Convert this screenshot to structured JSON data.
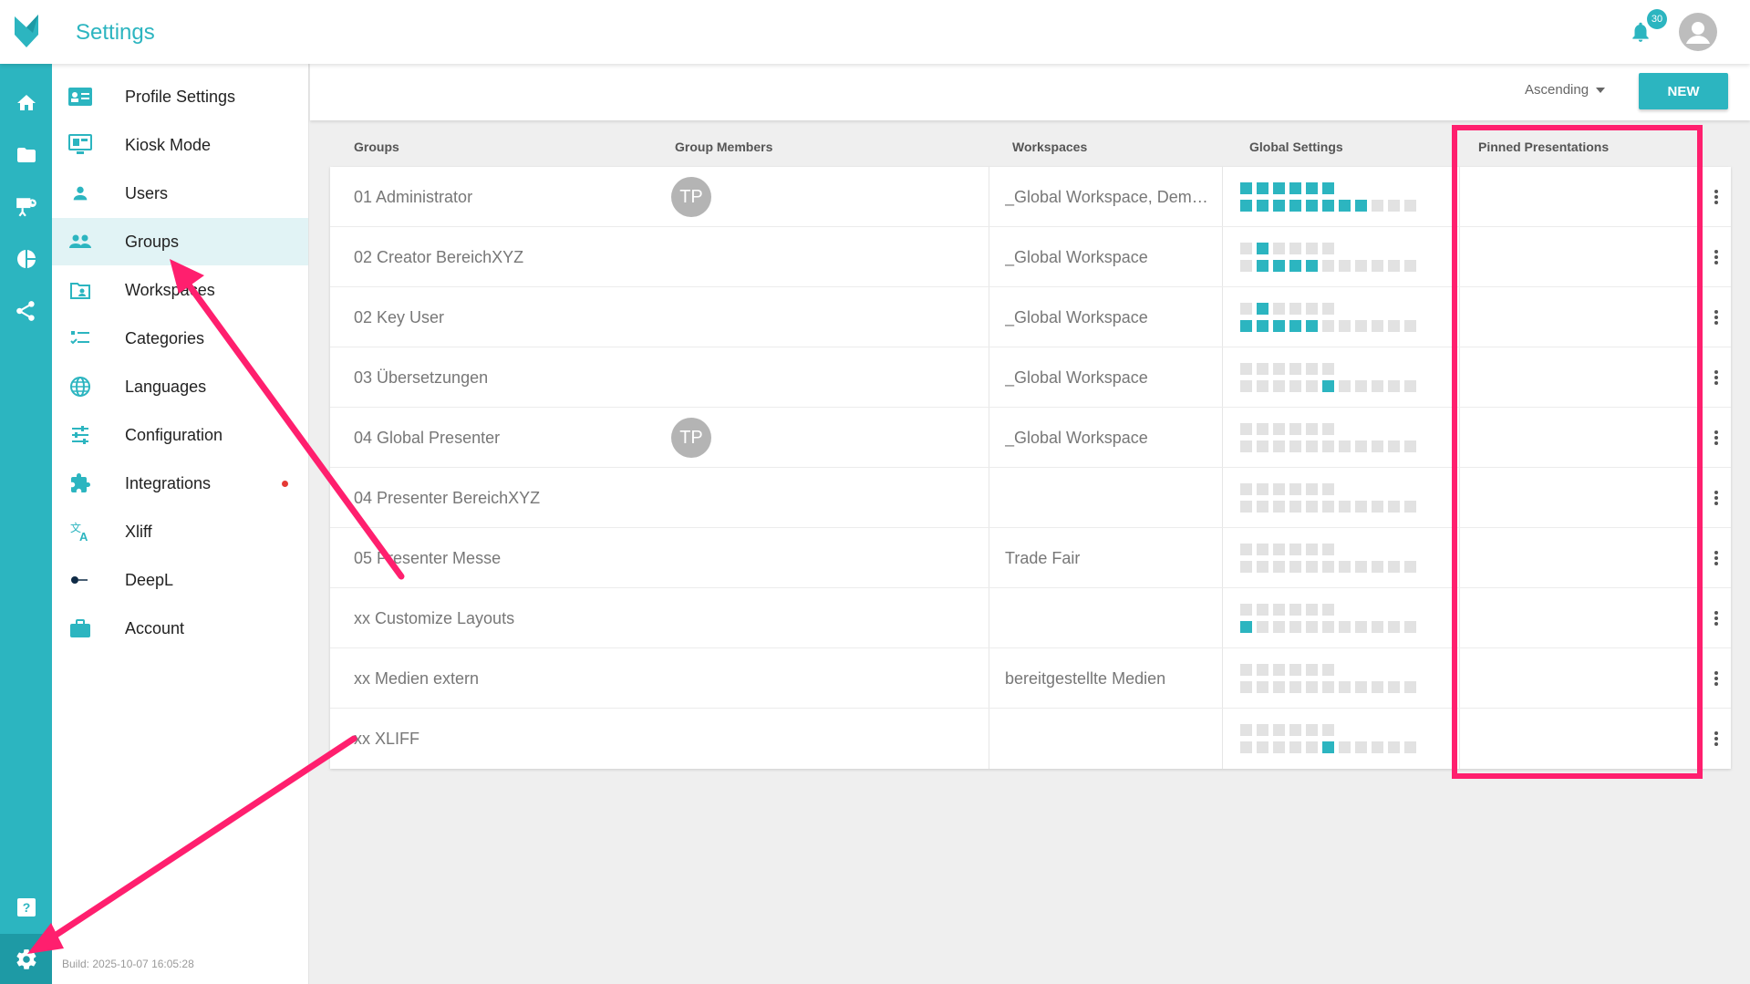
{
  "app": {
    "title": "Settings"
  },
  "header": {
    "notification_count": "30"
  },
  "nav": {
    "items": [
      {
        "label": "Profile Settings",
        "icon": "profile-card-icon"
      },
      {
        "label": "Kiosk Mode",
        "icon": "kiosk-icon"
      },
      {
        "label": "Users",
        "icon": "user-icon"
      },
      {
        "label": "Groups",
        "icon": "groups-icon",
        "active": true
      },
      {
        "label": "Workspaces",
        "icon": "workspace-icon"
      },
      {
        "label": "Categories",
        "icon": "categories-icon"
      },
      {
        "label": "Languages",
        "icon": "globe-icon"
      },
      {
        "label": "Configuration",
        "icon": "sliders-icon"
      },
      {
        "label": "Integrations",
        "icon": "puzzle-icon",
        "dot": true
      },
      {
        "label": "Xliff",
        "icon": "translate-icon"
      },
      {
        "label": "DeepL",
        "icon": "deepl-icon"
      },
      {
        "label": "Account",
        "icon": "briefcase-icon"
      }
    ],
    "build": "Build: 2025-10-07 16:05:28"
  },
  "toolbar": {
    "sort_label": "Ascending",
    "new_label": "NEW"
  },
  "table": {
    "headers": {
      "groups": "Groups",
      "members": "Group Members",
      "workspaces": "Workspaces",
      "global_settings": "Global Settings",
      "pinned": "Pinned Presentations"
    },
    "rows": [
      {
        "name": "01 Administrator",
        "members": "TP",
        "workspaces": "_Global Workspace, Demo ...",
        "top": [
          1,
          1,
          1,
          1,
          1,
          1
        ],
        "bottom": [
          1,
          1,
          1,
          1,
          1,
          1,
          1,
          1,
          0,
          0,
          0
        ]
      },
      {
        "name": "02 Creator BereichXYZ",
        "members": "",
        "workspaces": "_Global Workspace",
        "top": [
          0,
          1,
          0,
          0,
          0,
          0
        ],
        "bottom": [
          0,
          1,
          1,
          1,
          1,
          0,
          0,
          0,
          0,
          0,
          0
        ]
      },
      {
        "name": "02 Key User",
        "members": "",
        "workspaces": "_Global Workspace",
        "top": [
          0,
          1,
          0,
          0,
          0,
          0
        ],
        "bottom": [
          1,
          1,
          1,
          1,
          1,
          0,
          0,
          0,
          0,
          0,
          0
        ]
      },
      {
        "name": "03 Übersetzungen",
        "members": "",
        "workspaces": "_Global Workspace",
        "top": [
          0,
          0,
          0,
          0,
          0,
          0
        ],
        "bottom": [
          0,
          0,
          0,
          0,
          0,
          1,
          0,
          0,
          0,
          0,
          0
        ]
      },
      {
        "name": "04 Global Presenter",
        "members": "TP",
        "workspaces": "_Global Workspace",
        "top": [
          0,
          0,
          0,
          0,
          0,
          0
        ],
        "bottom": [
          0,
          0,
          0,
          0,
          0,
          0,
          0,
          0,
          0,
          0,
          0
        ]
      },
      {
        "name": "04 Presenter BereichXYZ",
        "members": "",
        "workspaces": "",
        "top": [
          0,
          0,
          0,
          0,
          0,
          0
        ],
        "bottom": [
          0,
          0,
          0,
          0,
          0,
          0,
          0,
          0,
          0,
          0,
          0
        ]
      },
      {
        "name": "05 Presenter Messe",
        "members": "",
        "workspaces": "Trade Fair",
        "top": [
          0,
          0,
          0,
          0,
          0,
          0
        ],
        "bottom": [
          0,
          0,
          0,
          0,
          0,
          0,
          0,
          0,
          0,
          0,
          0
        ]
      },
      {
        "name": "xx Customize Layouts",
        "members": "",
        "workspaces": "",
        "top": [
          0,
          0,
          0,
          0,
          0,
          0
        ],
        "bottom": [
          1,
          0,
          0,
          0,
          0,
          0,
          0,
          0,
          0,
          0,
          0
        ]
      },
      {
        "name": "xx Medien extern",
        "members": "",
        "workspaces": "bereitgestellte Medien",
        "top": [
          0,
          0,
          0,
          0,
          0,
          0
        ],
        "bottom": [
          0,
          0,
          0,
          0,
          0,
          0,
          0,
          0,
          0,
          0,
          0
        ]
      },
      {
        "name": "xx XLIFF",
        "members": "",
        "workspaces": "",
        "top": [
          0,
          0,
          0,
          0,
          0,
          0
        ],
        "bottom": [
          0,
          0,
          0,
          0,
          0,
          1,
          0,
          0,
          0,
          0,
          0
        ]
      }
    ]
  },
  "colors": {
    "accent": "#2cb5c0",
    "annotation": "#ff1f6e"
  }
}
